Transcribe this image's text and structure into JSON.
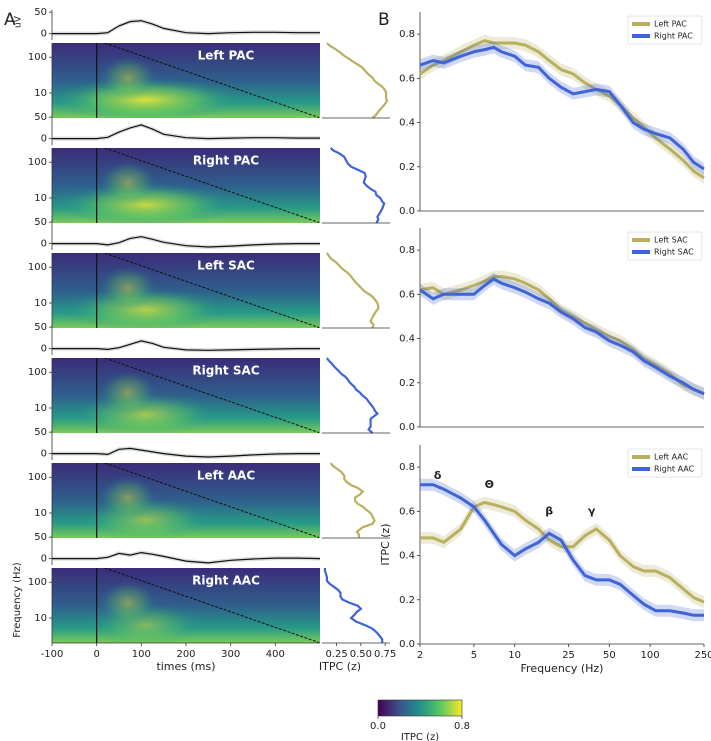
{
  "chart_data": [
    {
      "type": "heatmap-stack",
      "panel_label": "A",
      "erp_ylabel": "uV",
      "ylabel": "Frequency (Hz)",
      "xlabel": "times (ms)",
      "profile_xlabel": "ITPC (z)",
      "xlim": [
        -100,
        500
      ],
      "xticks": [
        -100,
        0,
        100,
        200,
        300,
        400
      ],
      "ylim": [
        2,
        250
      ],
      "yticks": [
        10,
        100
      ],
      "log_y": true,
      "erp_ylim": [
        -15,
        55
      ],
      "erp_yticks": [
        0,
        50
      ],
      "profile_xlim": [
        0.1,
        0.8
      ],
      "profile_xticks": [
        0.25,
        {
          "value": 0.5,
          "label": "0.50"
        },
        0.75
      ],
      "erp_x": [
        -100,
        -50,
        0,
        25,
        50,
        75,
        100,
        125,
        150,
        200,
        250,
        300,
        350,
        400,
        450,
        500
      ],
      "rows": [
        {
          "label": "Left PAC",
          "erp": [
            0,
            0,
            0,
            2,
            18,
            28,
            30,
            22,
            12,
            2,
            0,
            2,
            3,
            3,
            2,
            2
          ]
        },
        {
          "label": "Right PAC",
          "erp": [
            0,
            0,
            0,
            3,
            15,
            25,
            32,
            22,
            10,
            2,
            0,
            1,
            2,
            2,
            1,
            1
          ]
        },
        {
          "label": "Left SAC",
          "erp": [
            0,
            0,
            0,
            -3,
            2,
            12,
            16,
            10,
            3,
            -5,
            -8,
            -6,
            -3,
            -1,
            0,
            0
          ]
        },
        {
          "label": "Right SAC",
          "erp": [
            0,
            0,
            0,
            -2,
            2,
            10,
            18,
            12,
            3,
            -3,
            -4,
            -3,
            -2,
            -1,
            0,
            0
          ]
        },
        {
          "label": "Left AAC",
          "erp": [
            0,
            0,
            0,
            -2,
            10,
            12,
            8,
            4,
            0,
            -6,
            -8,
            -6,
            -3,
            -1,
            0,
            0
          ]
        },
        {
          "label": "Right AAC",
          "erp": [
            0,
            0,
            0,
            3,
            12,
            8,
            14,
            10,
            5,
            -6,
            -10,
            -4,
            -1,
            1,
            1,
            0
          ]
        }
      ],
      "colorbar": {
        "lim": [
          0,
          0.8
        ],
        "ticks": [
          {
            "value": 0,
            "label": "0.0"
          },
          {
            "value": 0.8,
            "label": "0.8"
          }
        ],
        "label": "ITPC (z)"
      }
    },
    {
      "type": "line",
      "panel_label": "B",
      "log_x": true,
      "x": [
        2,
        2.5,
        3,
        4,
        5,
        6,
        7,
        8,
        10,
        12,
        15,
        18,
        22,
        27,
        33,
        40,
        50,
        60,
        75,
        90,
        110,
        140,
        175,
        210,
        250
      ],
      "xlim": [
        2,
        250
      ],
      "xticks": [
        2,
        5,
        10,
        25,
        50,
        100,
        250
      ],
      "ylim": [
        0,
        0.9
      ],
      "yticks": [
        {
          "value": 0,
          "label": "0.0"
        },
        0.2,
        0.4,
        0.6,
        0.8
      ],
      "xlabel": "Frequency (Hz)",
      "ylabel": "ITPC (z)",
      "legend": "upper right",
      "charts": [
        {
          "series": [
            {
              "name": "Left PAC",
              "color": "#b8b05e",
              "values": [
                0.62,
                0.66,
                0.68,
                0.72,
                0.75,
                0.77,
                0.76,
                0.76,
                0.76,
                0.75,
                0.72,
                0.68,
                0.64,
                0.62,
                0.58,
                0.55,
                0.52,
                0.48,
                0.42,
                0.38,
                0.33,
                0.28,
                0.23,
                0.18,
                0.15
              ]
            },
            {
              "name": "Right PAC",
              "color": "#3f64d8",
              "values": [
                0.66,
                0.68,
                0.67,
                0.7,
                0.72,
                0.73,
                0.74,
                0.72,
                0.7,
                0.66,
                0.65,
                0.6,
                0.56,
                0.53,
                0.54,
                0.55,
                0.54,
                0.48,
                0.4,
                0.37,
                0.35,
                0.33,
                0.28,
                0.22,
                0.19
              ]
            }
          ]
        },
        {
          "series": [
            {
              "name": "Left SAC",
              "color": "#b8b05e",
              "values": [
                0.62,
                0.63,
                0.6,
                0.62,
                0.64,
                0.66,
                0.68,
                0.68,
                0.67,
                0.65,
                0.62,
                0.58,
                0.53,
                0.5,
                0.47,
                0.44,
                0.41,
                0.39,
                0.35,
                0.31,
                0.28,
                0.24,
                0.19,
                0.17,
                0.15
              ]
            },
            {
              "name": "Right SAC",
              "color": "#3f64d8",
              "values": [
                0.62,
                0.58,
                0.6,
                0.6,
                0.6,
                0.64,
                0.67,
                0.65,
                0.63,
                0.61,
                0.58,
                0.56,
                0.52,
                0.49,
                0.45,
                0.43,
                0.39,
                0.37,
                0.34,
                0.3,
                0.27,
                0.23,
                0.2,
                0.17,
                0.15
              ]
            }
          ]
        },
        {
          "series": [
            {
              "name": "Left AAC",
              "color": "#b8b05e",
              "values": [
                0.48,
                0.48,
                0.46,
                0.52,
                0.62,
                0.64,
                0.63,
                0.62,
                0.6,
                0.56,
                0.52,
                0.47,
                0.44,
                0.44,
                0.49,
                0.52,
                0.47,
                0.4,
                0.35,
                0.33,
                0.33,
                0.3,
                0.25,
                0.21,
                0.19
              ]
            },
            {
              "name": "Right AAC",
              "color": "#3f64d8",
              "values": [
                0.72,
                0.72,
                0.7,
                0.66,
                0.62,
                0.56,
                0.5,
                0.45,
                0.4,
                0.43,
                0.46,
                0.5,
                0.47,
                0.38,
                0.31,
                0.29,
                0.29,
                0.27,
                0.22,
                0.18,
                0.15,
                0.15,
                0.14,
                0.13,
                0.13
              ]
            }
          ],
          "annotations": [
            {
              "text": "δ",
              "x": 2.7,
              "y": 0.76
            },
            {
              "text": "Θ",
              "x": 6.5,
              "y": 0.72
            },
            {
              "text": "β",
              "x": 18,
              "y": 0.6
            },
            {
              "text": "γ",
              "x": 37,
              "y": 0.6
            }
          ]
        }
      ]
    }
  ]
}
